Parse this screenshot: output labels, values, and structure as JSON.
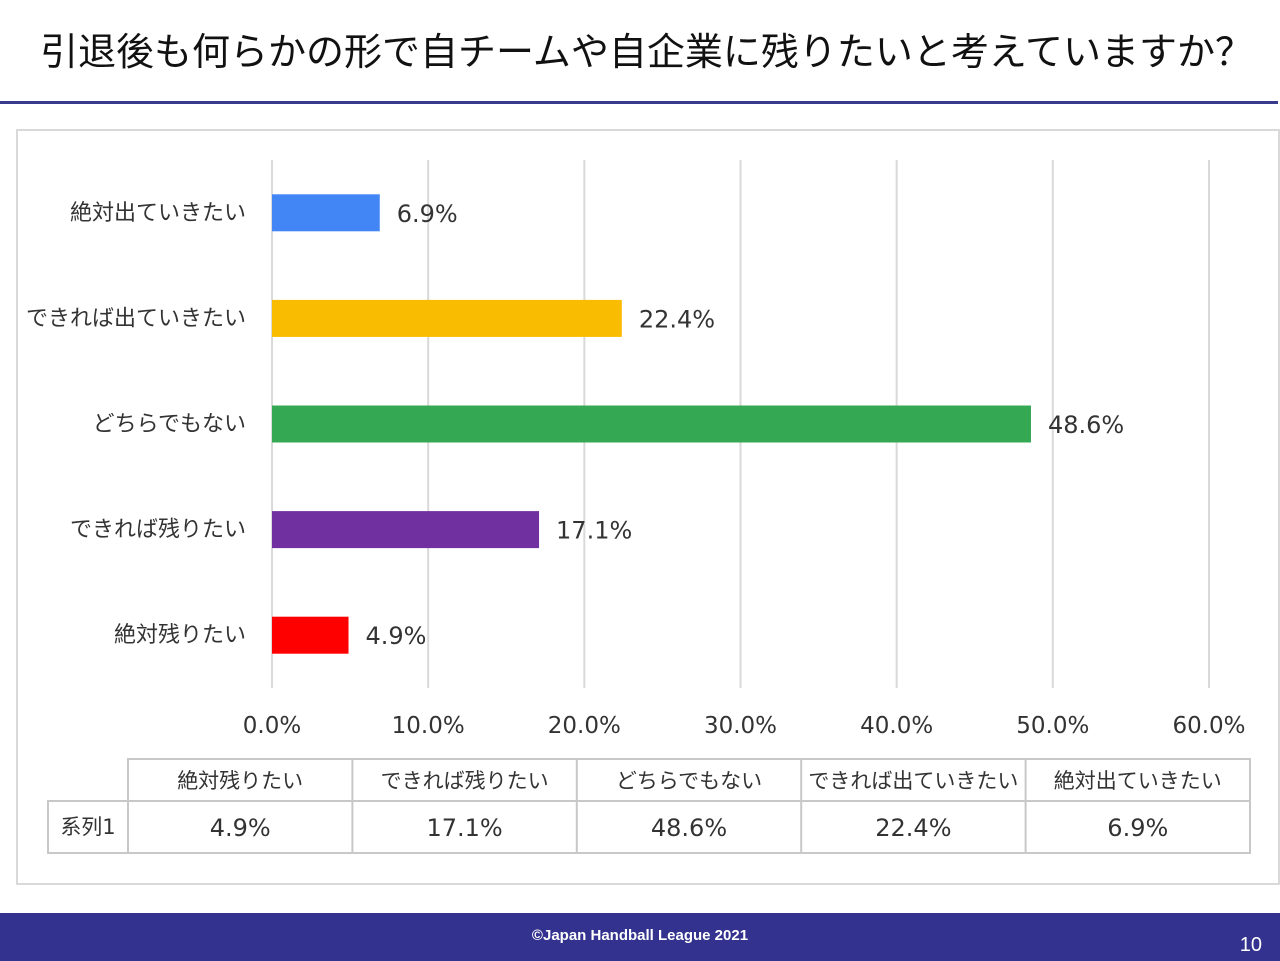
{
  "slide": {
    "title": "引退後も何らかの形で自チームや自企業に残りたいと考えていますか？",
    "footer": "©Japan Handball League  2021",
    "page_number": "10"
  },
  "chart_data": {
    "type": "bar",
    "orientation": "horizontal",
    "title": "引退後も何らかの形で自チームや自企業に残りたいと考えていますか？",
    "categories": [
      "絶対残りたい",
      "できれば残りたい",
      "どちらでもない",
      "できれば出ていきたい",
      "絶対出ていきたい"
    ],
    "series": [
      {
        "name": "系列1",
        "values": [
          4.9,
          17.1,
          48.6,
          22.4,
          6.9
        ],
        "value_labels": [
          "4.9%",
          "17.1%",
          "48.6%",
          "22.4%",
          "6.9%"
        ],
        "colors": [
          "#ff0000",
          "#7030a0",
          "#34a853",
          "#f9bc00",
          "#4285f4"
        ]
      }
    ],
    "xlim": [
      0,
      60
    ],
    "x_ticks": [
      0,
      10,
      20,
      30,
      40,
      50,
      60
    ],
    "x_tick_labels": [
      "0.0%",
      "10.0%",
      "20.0%",
      "30.0%",
      "40.0%",
      "50.0%",
      "60.0%"
    ],
    "grid": true,
    "data_table": {
      "row_label": "系列1",
      "cells": [
        "4.9%",
        "17.1%",
        "48.6%",
        "22.4%",
        "6.9%"
      ]
    }
  }
}
